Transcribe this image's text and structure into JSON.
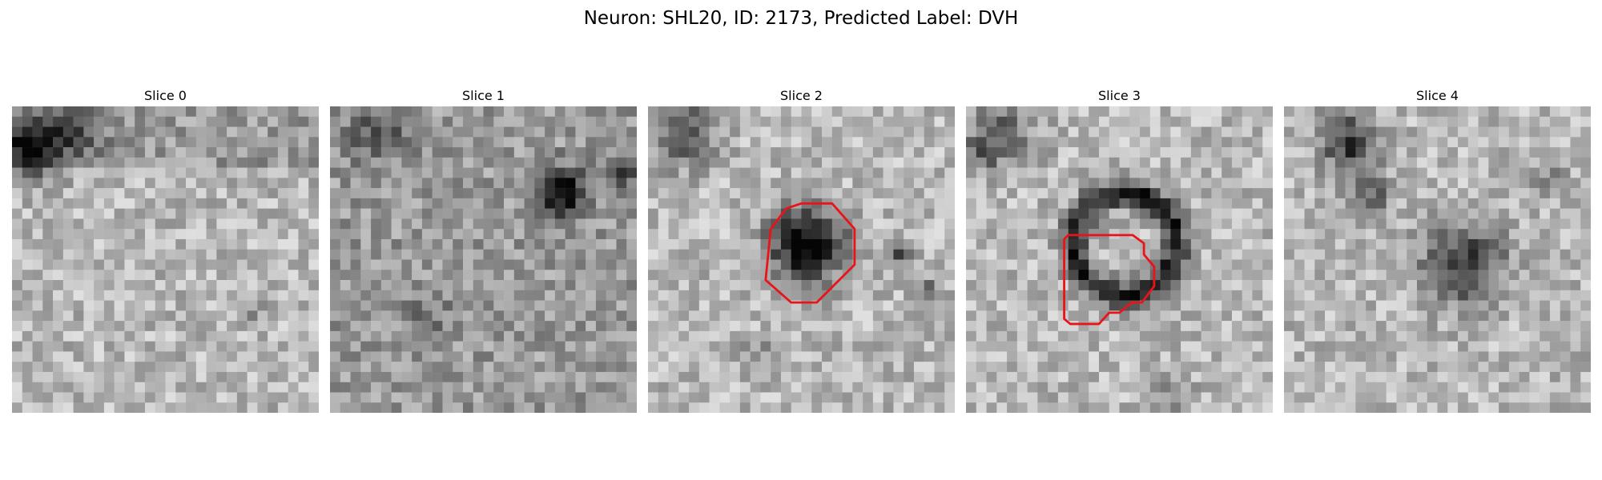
{
  "figure": {
    "title": "Neuron: SHL20, ID: 2173, Predicted Label: DVH"
  },
  "panels": [
    {
      "title": "Slice 0",
      "has_outline": false,
      "grid_size": 30
    },
    {
      "title": "Slice 1",
      "has_outline": false,
      "grid_size": 30
    },
    {
      "title": "Slice 2",
      "has_outline": true,
      "grid_size": 30
    },
    {
      "title": "Slice 3",
      "has_outline": true,
      "grid_size": 30
    },
    {
      "title": "Slice 4",
      "has_outline": false,
      "grid_size": 30
    }
  ],
  "colors": {
    "outline": "#e8141a",
    "background": "#ffffff"
  }
}
